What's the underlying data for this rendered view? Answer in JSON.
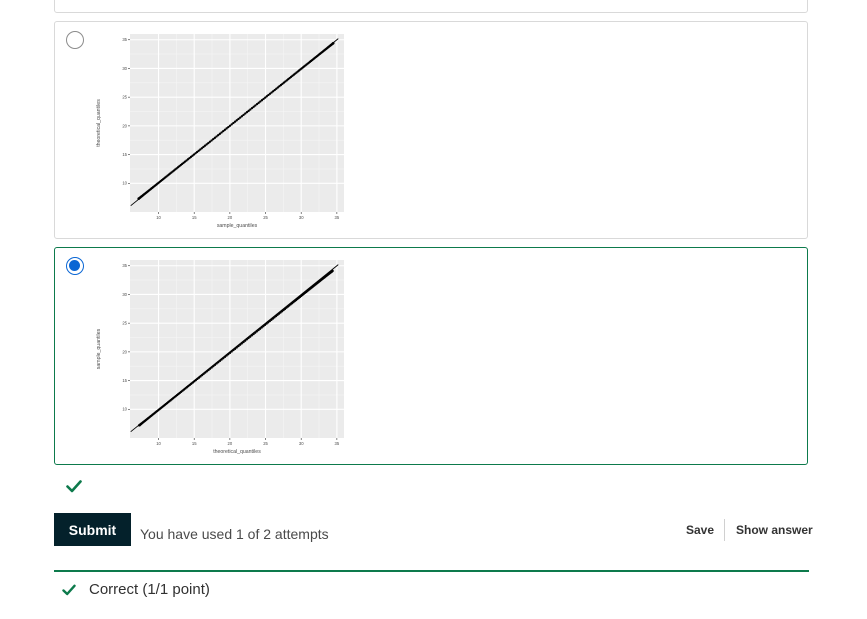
{
  "options": [
    {
      "selected": false,
      "chart_data": {
        "type": "scatter",
        "xlabel": "sample_quantiles",
        "ylabel": "theoretical_quantiles",
        "x_ticks": [
          10,
          15,
          20,
          25,
          30,
          35
        ],
        "y_ticks": [
          10,
          15,
          20,
          25,
          30,
          35
        ],
        "xlim": [
          6,
          36
        ],
        "ylim": [
          5,
          36
        ],
        "reference_line": "y = x",
        "grid": true,
        "points_from": [
          7.2,
          7.3
        ],
        "points_to": [
          34.5,
          34.4
        ]
      }
    },
    {
      "selected": true,
      "chart_data": {
        "type": "scatter",
        "xlabel": "theoretical_quantiles",
        "ylabel": "sample_quantiles",
        "x_ticks": [
          10,
          15,
          20,
          25,
          30,
          35
        ],
        "y_ticks": [
          10,
          15,
          20,
          25,
          30,
          35
        ],
        "xlim": [
          6,
          36
        ],
        "ylim": [
          5,
          36
        ],
        "reference_line": "y = x",
        "grid": true,
        "points_from": [
          7.3,
          7.2
        ],
        "points_to": [
          34.4,
          34.1
        ]
      }
    }
  ],
  "status": {
    "correct_icon": "check-icon",
    "color": "#0d7a4c"
  },
  "actions": {
    "submit_label": "Submit",
    "attempts_text": "You have used 1 of 2 attempts",
    "save_label": "Save",
    "show_answer_label": "Show answer"
  },
  "feedback": {
    "icon": "check-icon",
    "text": "Correct (1/1 point)"
  }
}
